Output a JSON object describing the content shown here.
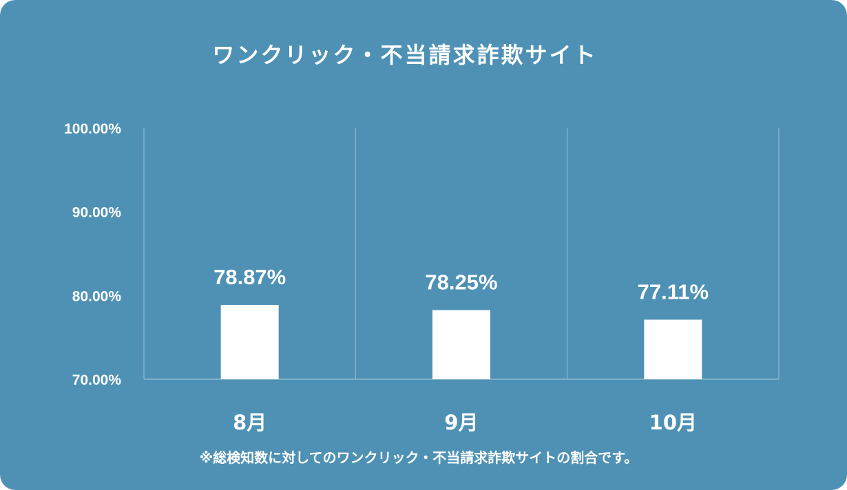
{
  "colors": {
    "background": "#4e91b5",
    "bar": "#ffffff",
    "text": "#ffffff",
    "gridline": "#8fbad2"
  },
  "chart_data": {
    "type": "bar",
    "title": "ワンクリック・不当請求詐欺サイト",
    "categories": [
      "8月",
      "9月",
      "10月"
    ],
    "values": [
      78.87,
      78.25,
      77.11
    ],
    "value_labels": [
      "78.87%",
      "78.25%",
      "77.11%"
    ],
    "ylim": [
      70,
      100
    ],
    "yticks": [
      70,
      80,
      90,
      100
    ],
    "ytick_labels": [
      "70.00%",
      "80.00%",
      "90.00%",
      "100.00%"
    ],
    "grid": "vertical category separators",
    "legend": "none",
    "note": "※総検知数に対してのワンクリック・不当請求詐欺サイトの割合です。"
  }
}
